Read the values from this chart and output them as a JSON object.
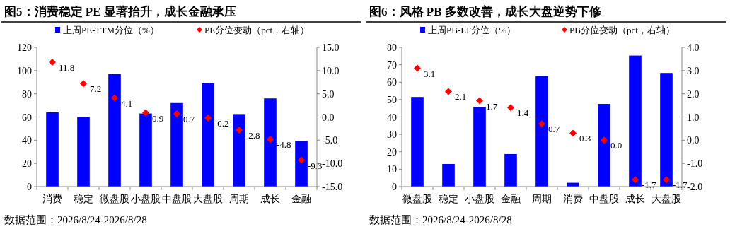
{
  "chart_data": [
    {
      "type": "bar",
      "title": "图5：消费稳定 PE 显著抬升，成长金融承压",
      "categories": [
        "消费",
        "稳定",
        "微盘股",
        "小盘股",
        "中盘股",
        "大盘股",
        "周期",
        "成长",
        "金融"
      ],
      "series": [
        {
          "name": "上周PE-TTM分位（%）",
          "color": "#0000ff",
          "values": [
            64,
            60,
            97,
            63,
            72,
            89,
            62.5,
            76,
            39.5
          ]
        },
        {
          "name": "PE分位变动（pct，右轴）",
          "type": "scatter",
          "axis": "y2",
          "color": "#ff0000",
          "marker": "diamond",
          "values": [
            11.8,
            7.2,
            4.1,
            0.9,
            0.7,
            -0.2,
            -2.8,
            -4.8,
            -9.3
          ],
          "value_labels": [
            "11.8",
            "7.2",
            "4.1",
            "0.9",
            "0.7",
            "-0.2",
            "-2.8",
            "-4.8",
            "-9.3"
          ]
        }
      ],
      "ylim": [
        0,
        120
      ],
      "yticks": [
        0,
        20,
        40,
        60,
        80,
        100,
        120
      ],
      "y2lim": [
        -15,
        15
      ],
      "y2ticks": [
        {
          "value": -15,
          "label": "-15.0"
        },
        {
          "value": -10,
          "label": "-10.0"
        },
        {
          "value": -5,
          "label": "-5.0"
        },
        {
          "value": 0,
          "label": "0.0"
        },
        {
          "value": 5,
          "label": "5.0"
        },
        {
          "value": 10,
          "label": "10.0"
        },
        {
          "value": 15,
          "label": "15.0"
        }
      ],
      "legend": "top",
      "grid": false,
      "annotations": [
        "数据范围：2026/8/24-2026/8/28"
      ]
    },
    {
      "type": "bar",
      "title": "图6：风格 PB 多数改善，成长大盘逆势下修",
      "categories": [
        "微盘股",
        "稳定",
        "小盘股",
        "金融",
        "周期",
        "消费",
        "中盘股",
        "成长",
        "大盘股"
      ],
      "series": [
        {
          "name": "上周PB-LF分位（%）",
          "color": "#0000ff",
          "values": [
            51.5,
            13,
            45.8,
            18.7,
            63.5,
            2.2,
            47.5,
            75.3,
            65.3
          ]
        },
        {
          "name": "PB分位变动（pct，右轴）",
          "type": "scatter",
          "axis": "y2",
          "color": "#ff0000",
          "marker": "diamond",
          "values": [
            3.1,
            2.1,
            1.7,
            1.4,
            0.7,
            0.3,
            0.0,
            -1.7,
            -1.7
          ],
          "value_labels": [
            "3.1",
            "2.1",
            "1.7",
            "1.4",
            "0.7",
            "0.3",
            "0.0",
            "-1.7",
            "-1.7"
          ]
        }
      ],
      "ylim": [
        0,
        80
      ],
      "yticks": [
        0,
        10,
        20,
        30,
        40,
        50,
        60,
        70,
        80
      ],
      "y2lim": [
        -2,
        4
      ],
      "y2ticks": [
        {
          "value": -2,
          "label": "-2.0"
        },
        {
          "value": -1,
          "label": "-1.0"
        },
        {
          "value": 0,
          "label": "0.0"
        },
        {
          "value": 1,
          "label": "1.0"
        },
        {
          "value": 2,
          "label": "2.0"
        },
        {
          "value": 3,
          "label": "3.0"
        },
        {
          "value": 4,
          "label": "4.0"
        }
      ],
      "legend": "top",
      "grid": false,
      "annotations": [
        "数据范围：2026/8/24-2026/8/28"
      ]
    }
  ]
}
